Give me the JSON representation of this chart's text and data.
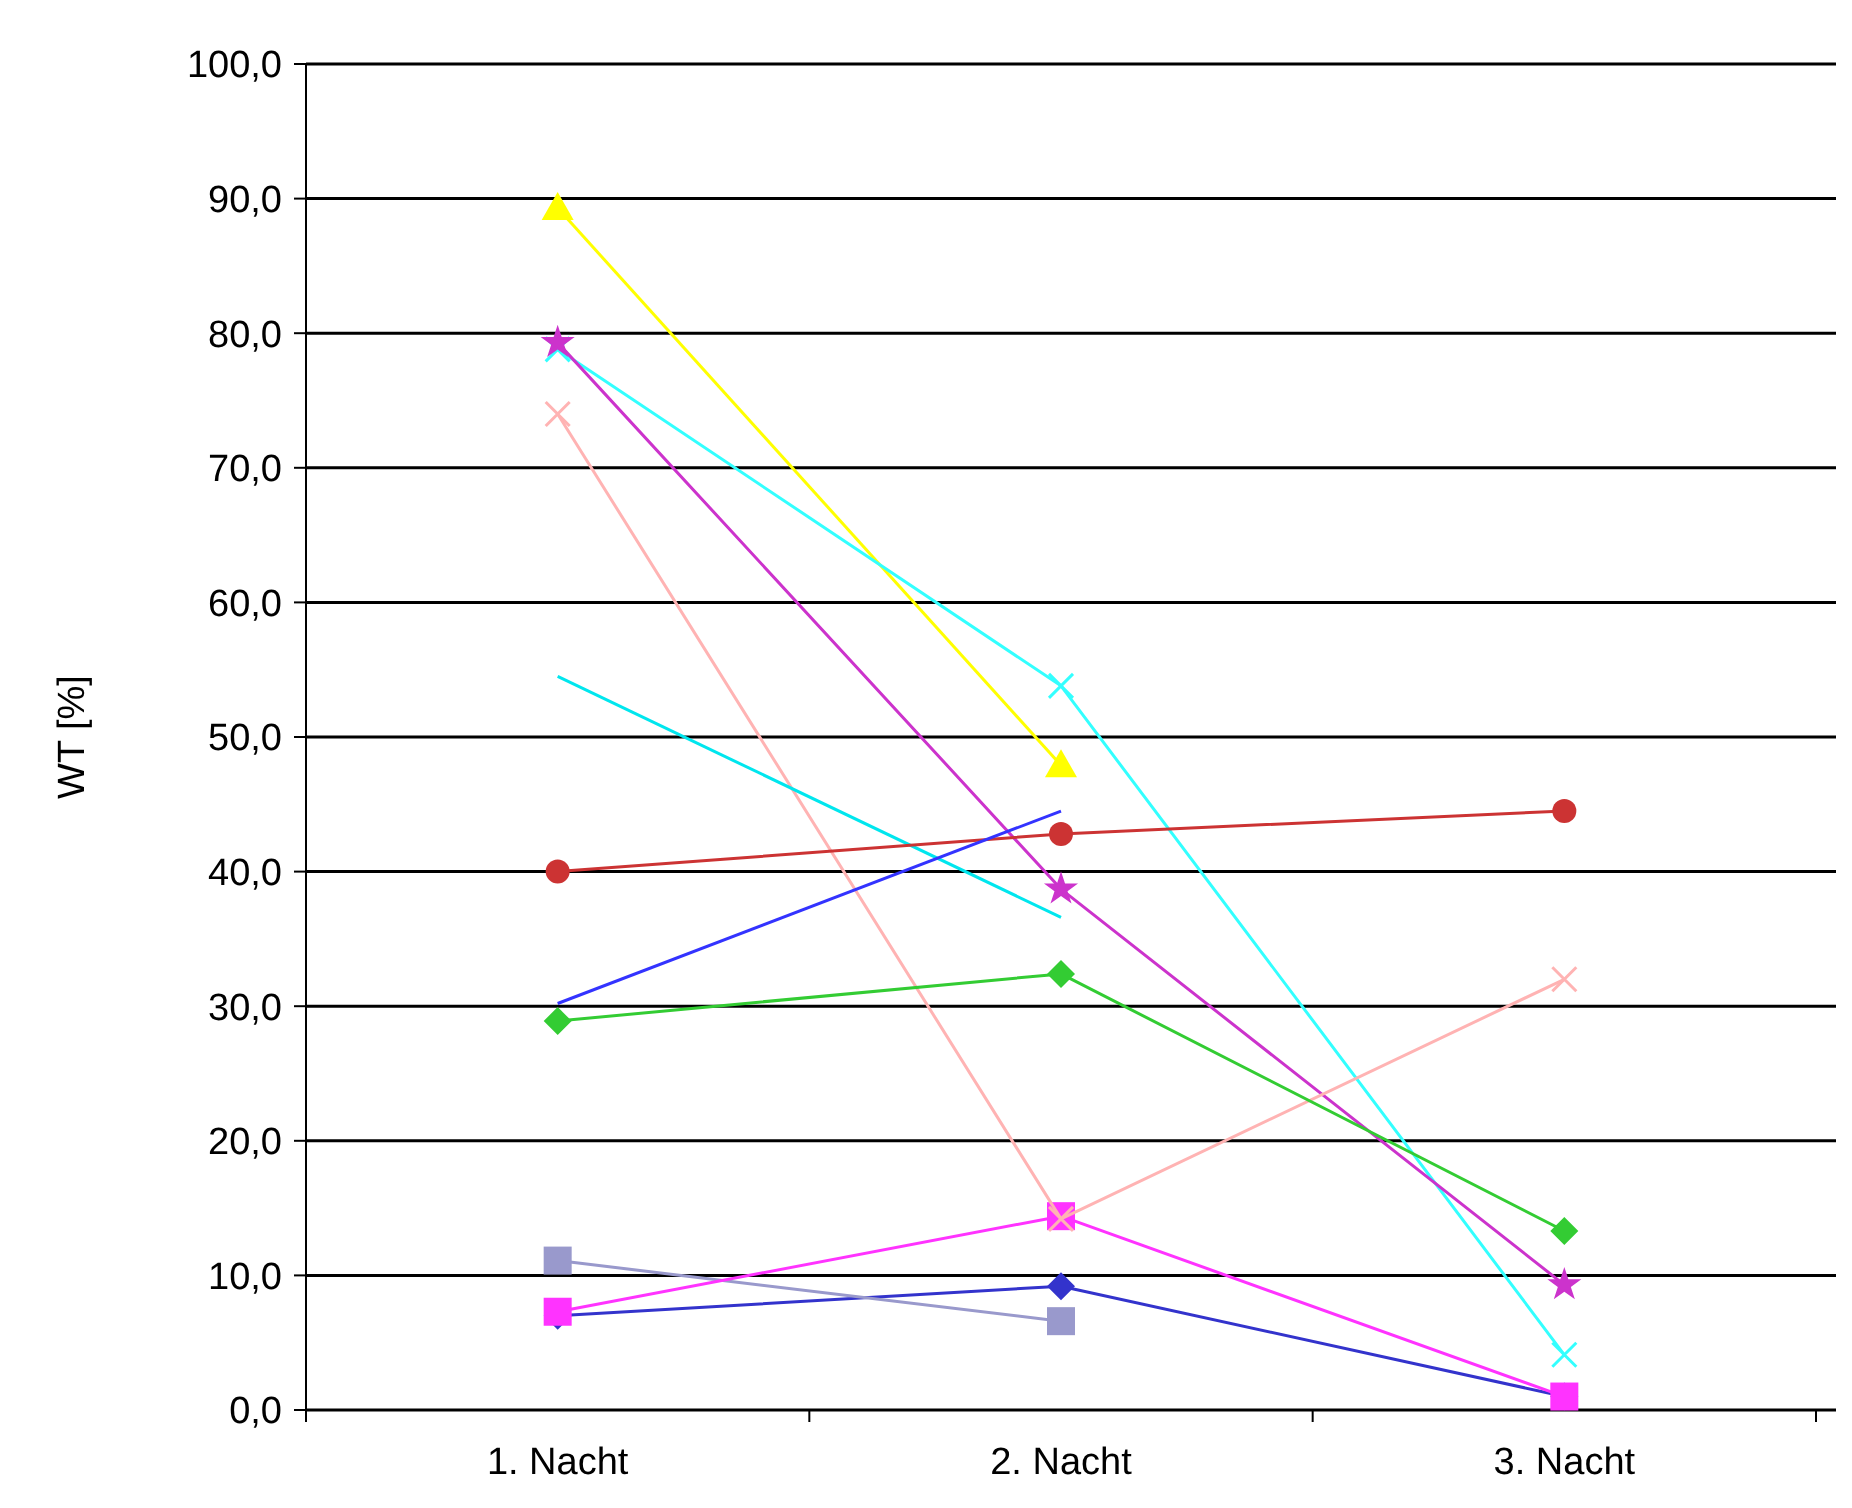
{
  "chart_data": {
    "type": "line",
    "ylabel": "WT [%]",
    "categories": [
      "1. Nacht",
      "2. Nacht",
      "3. Nacht"
    ],
    "ylim": [
      0,
      100
    ],
    "yticks": [
      {
        "value": 0,
        "label": "0,0"
      },
      {
        "value": 10,
        "label": "10,0"
      },
      {
        "value": 20,
        "label": "20,0"
      },
      {
        "value": 30,
        "label": "30,0"
      },
      {
        "value": 40,
        "label": "40,0"
      },
      {
        "value": 50,
        "label": "50,0"
      },
      {
        "value": 60,
        "label": "60,0"
      },
      {
        "value": 70,
        "label": "70,0"
      },
      {
        "value": 80,
        "label": "80,0"
      },
      {
        "value": 90,
        "label": "90,0"
      },
      {
        "value": 100,
        "label": "100,0"
      }
    ],
    "grid": "y",
    "series": [
      {
        "color": "#3333cc",
        "marker": "diamond",
        "values": [
          7.0,
          9.2,
          1.0
        ]
      },
      {
        "color": "#9999cc",
        "marker": "square",
        "values": [
          11.1,
          6.6,
          null
        ]
      },
      {
        "color": "#ff33ff",
        "marker": "square",
        "values": [
          7.3,
          14.4,
          1.0
        ]
      },
      {
        "color": "#ffff00",
        "marker": "triangle",
        "values": [
          89.3,
          47.9,
          null
        ]
      },
      {
        "color": "#33ffff",
        "marker": "cross",
        "values": [
          78.8,
          53.8,
          4.1
        ]
      },
      {
        "color": "#cc33cc",
        "marker": "star",
        "values": [
          79.3,
          38.7,
          9.3
        ]
      },
      {
        "color": "#ffb3b3",
        "marker": "cross",
        "values": [
          74.0,
          14.2,
          32.0
        ]
      },
      {
        "color": "#00e6ee",
        "marker": "none",
        "values": [
          54.5,
          36.6,
          null
        ]
      },
      {
        "color": "#cc3333",
        "marker": "circle",
        "values": [
          40.0,
          42.8,
          44.5
        ]
      },
      {
        "color": "#3333ff",
        "marker": "none",
        "values": [
          30.2,
          44.5,
          null
        ]
      },
      {
        "color": "#33cc33",
        "marker": "diamond",
        "values": [
          28.9,
          32.4,
          13.3
        ]
      }
    ]
  }
}
